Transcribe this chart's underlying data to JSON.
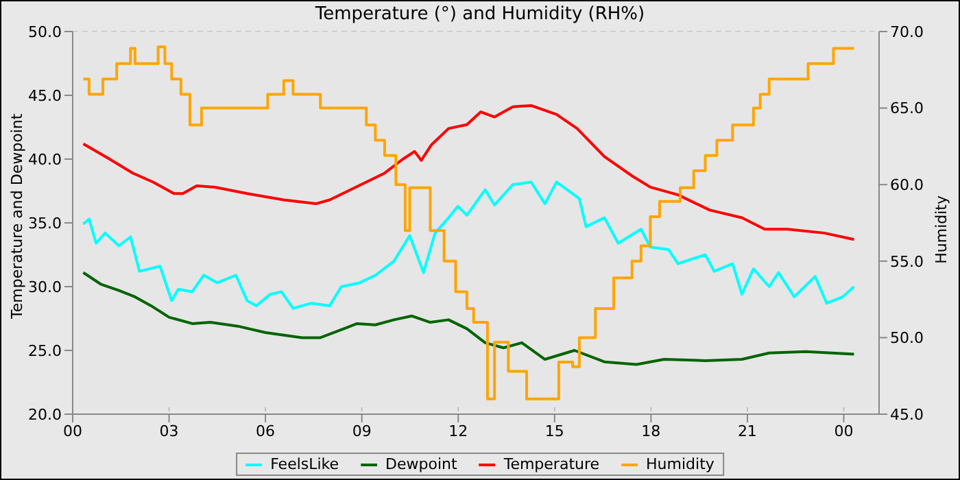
{
  "chart_data": {
    "type": "line",
    "title": "Temperature (°) and Humidity (RH%)",
    "ylabel": "Temperature and Dewpoint",
    "y2label": "Humidity",
    "xlim": [
      0,
      25.1
    ],
    "xticks": [
      {
        "value": 0,
        "label": "00"
      },
      {
        "value": 3,
        "label": "03"
      },
      {
        "value": 6,
        "label": "06"
      },
      {
        "value": 9,
        "label": "09"
      },
      {
        "value": 12,
        "label": "12"
      },
      {
        "value": 15,
        "label": "15"
      },
      {
        "value": 18,
        "label": "18"
      },
      {
        "value": 21,
        "label": "21"
      },
      {
        "value": 24,
        "label": "00"
      }
    ],
    "ylim": [
      20,
      50
    ],
    "yticks": [
      {
        "value": 20,
        "label": "20.0"
      },
      {
        "value": 25,
        "label": "25.0"
      },
      {
        "value": 30,
        "label": "30.0"
      },
      {
        "value": 35,
        "label": "35.0"
      },
      {
        "value": 40,
        "label": "40.0"
      },
      {
        "value": 45,
        "label": "45.0"
      },
      {
        "value": 50,
        "label": "50.0"
      }
    ],
    "y2lim": [
      45,
      70
    ],
    "y2ticks": [
      {
        "value": 45,
        "label": "45.0"
      },
      {
        "value": 50,
        "label": "50.0"
      },
      {
        "value": 55,
        "label": "55.0"
      },
      {
        "value": 60,
        "label": "60.0"
      },
      {
        "value": 65,
        "label": "65.0"
      },
      {
        "value": 70,
        "label": "70.0"
      }
    ],
    "grid": true,
    "legend": "bottom",
    "line_style": "solid",
    "series": [
      {
        "name": "FeelsLike",
        "color": "#00ffff",
        "x": [
          0.33,
          0.51,
          0.73,
          1.01,
          1.44,
          1.8,
          2.08,
          2.72,
          3.08,
          3.29,
          3.72,
          4.08,
          4.5,
          5.08,
          5.43,
          5.72,
          6.15,
          6.5,
          6.86,
          7.43,
          8.0,
          8.36,
          8.93,
          9.43,
          10.0,
          10.49,
          10.92,
          11.28,
          11.7,
          11.99,
          12.27,
          12.84,
          13.13,
          13.7,
          14.27,
          14.7,
          15.06,
          15.77,
          15.98,
          16.55,
          16.98,
          17.69,
          17.98,
          18.55,
          18.84,
          19.69,
          19.97,
          20.54,
          20.83,
          21.19,
          21.68,
          21.97,
          22.46,
          23.11,
          23.47,
          23.97,
          24.32
        ],
        "values": [
          34.9,
          35.3,
          33.4,
          34.2,
          33.2,
          33.9,
          31.2,
          31.6,
          28.9,
          29.8,
          29.6,
          30.9,
          30.3,
          30.9,
          28.9,
          28.5,
          29.4,
          29.6,
          28.3,
          28.7,
          28.5,
          30.0,
          30.3,
          30.9,
          32.0,
          34.0,
          31.1,
          34.2,
          35.4,
          36.3,
          35.6,
          37.6,
          36.4,
          38.0,
          38.2,
          36.5,
          38.2,
          36.9,
          34.7,
          35.4,
          33.4,
          34.5,
          33.1,
          32.9,
          31.8,
          32.5,
          31.2,
          31.8,
          29.4,
          31.4,
          30.0,
          31.1,
          29.2,
          30.8,
          28.7,
          29.2,
          30.0
        ]
      },
      {
        "name": "Dewpoint",
        "color": "#006400",
        "x": [
          0.33,
          0.87,
          1.44,
          1.94,
          2.44,
          3.0,
          3.72,
          4.29,
          5.14,
          6.0,
          7.14,
          7.71,
          8.85,
          9.42,
          10.0,
          10.56,
          11.13,
          11.7,
          12.27,
          12.84,
          13.41,
          13.98,
          14.7,
          15.62,
          16.55,
          17.55,
          18.41,
          19.69,
          20.83,
          21.68,
          22.82,
          24.32
        ],
        "values": [
          31.1,
          30.2,
          29.7,
          29.2,
          28.5,
          27.6,
          27.1,
          27.2,
          26.9,
          26.4,
          26.0,
          26.0,
          27.1,
          27.0,
          27.4,
          27.7,
          27.2,
          27.4,
          26.7,
          25.6,
          25.2,
          25.6,
          24.3,
          25.0,
          24.1,
          23.9,
          24.3,
          24.2,
          24.3,
          24.8,
          24.9,
          24.7
        ]
      },
      {
        "name": "Temperature",
        "color": "#ff0000",
        "x": [
          0.33,
          1.15,
          1.87,
          2.5,
          3.15,
          3.43,
          3.86,
          4.43,
          5.43,
          6.57,
          7.57,
          8.0,
          8.57,
          9.14,
          9.71,
          10.28,
          10.64,
          10.85,
          11.16,
          11.7,
          12.27,
          12.7,
          13.13,
          13.7,
          14.27,
          15.06,
          15.7,
          16.55,
          17.4,
          17.98,
          18.84,
          19.83,
          20.83,
          21.54,
          22.25,
          23.4,
          24.32
        ],
        "values": [
          41.2,
          40.0,
          38.9,
          38.2,
          37.3,
          37.3,
          37.9,
          37.8,
          37.3,
          36.8,
          36.5,
          36.8,
          37.5,
          38.2,
          38.9,
          40.0,
          40.6,
          39.9,
          41.1,
          42.4,
          42.7,
          43.7,
          43.3,
          44.1,
          44.2,
          43.5,
          42.4,
          40.2,
          38.7,
          37.8,
          37.2,
          36.0,
          35.4,
          34.5,
          34.5,
          34.2,
          33.7
        ]
      },
      {
        "name": "Humidity",
        "color": "#ffa500",
        "type": "step",
        "axis": "y2",
        "x": [
          0.33,
          0.51,
          0.94,
          1.37,
          1.8,
          1.94,
          2.66,
          2.87,
          3.08,
          3.37,
          3.65,
          4.01,
          5.72,
          6.07,
          6.57,
          6.86,
          7.71,
          8.85,
          9.14,
          9.42,
          9.71,
          10.06,
          10.35,
          10.49,
          10.85,
          11.13,
          11.56,
          11.92,
          12.27,
          12.48,
          12.91,
          13.13,
          13.56,
          14.13,
          14.84,
          15.13,
          15.56,
          15.77,
          16.27,
          16.84,
          17.41,
          17.69,
          17.98,
          18.27,
          18.91,
          19.33,
          19.69,
          20.05,
          20.54,
          21.19,
          21.4,
          21.68,
          22.82,
          22.89,
          23.68,
          24.32
        ],
        "values": [
          66.9,
          65.9,
          66.9,
          67.9,
          68.9,
          67.9,
          69.0,
          67.9,
          66.9,
          65.9,
          63.9,
          65.0,
          65.0,
          65.9,
          66.8,
          65.9,
          65.0,
          65.0,
          63.9,
          62.9,
          61.9,
          60.0,
          57.0,
          59.8,
          59.8,
          57.0,
          55.0,
          53.0,
          51.9,
          51.0,
          46.0,
          49.7,
          47.8,
          46.0,
          46.0,
          48.4,
          48.1,
          50.0,
          51.9,
          53.9,
          55.0,
          56.0,
          57.9,
          58.9,
          59.8,
          60.9,
          61.9,
          62.9,
          63.9,
          65.0,
          65.9,
          66.9,
          66.9,
          67.9,
          68.9,
          68.9
        ]
      }
    ]
  }
}
